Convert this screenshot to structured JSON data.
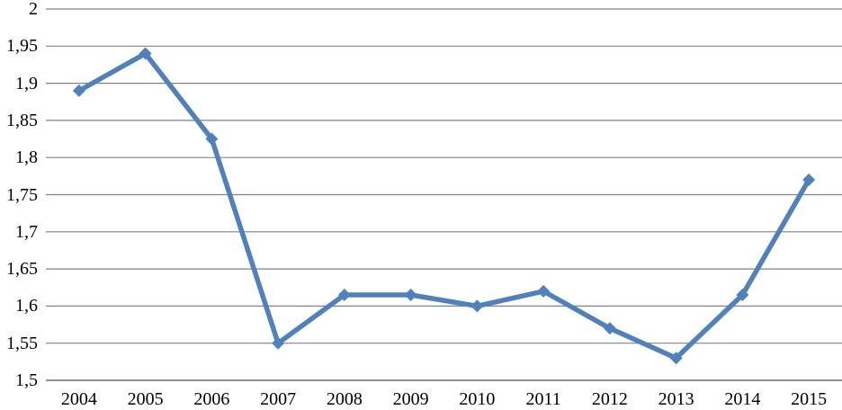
{
  "chart_data": {
    "type": "line",
    "title": "",
    "xlabel": "",
    "ylabel": "",
    "categories": [
      "2004",
      "2005",
      "2006",
      "2007",
      "2008",
      "2009",
      "2010",
      "2011",
      "2012",
      "2013",
      "2014",
      "2015"
    ],
    "series": [
      {
        "name": "series-1",
        "values": [
          1.89,
          1.94,
          1.825,
          1.55,
          1.615,
          1.615,
          1.6,
          1.62,
          1.57,
          1.53,
          1.615,
          1.77
        ]
      }
    ],
    "ylim": [
      1.5,
      2
    ],
    "ytick_step": 0.05,
    "yticks": [
      {
        "value": 2,
        "label": "2"
      },
      {
        "value": 1.95,
        "label": "1,95"
      },
      {
        "value": 1.9,
        "label": "1,9"
      },
      {
        "value": 1.85,
        "label": "1,85"
      },
      {
        "value": 1.8,
        "label": "1,8"
      },
      {
        "value": 1.75,
        "label": "1,75"
      },
      {
        "value": 1.7,
        "label": "1,7"
      },
      {
        "value": 1.65,
        "label": "1,65"
      },
      {
        "value": 1.6,
        "label": "1,6"
      },
      {
        "value": 1.55,
        "label": "1,55"
      },
      {
        "value": 1.5,
        "label": "1,5"
      }
    ],
    "decimal_separator": ",",
    "grid": true,
    "legend_position": "none",
    "marker": "diamond",
    "colors": {
      "line": "#4F81BD",
      "marker": "#4F81BD",
      "gridline": "#828282",
      "axis": "#6f6f6f",
      "text": "#000000",
      "background": "#FFFFFF"
    }
  }
}
